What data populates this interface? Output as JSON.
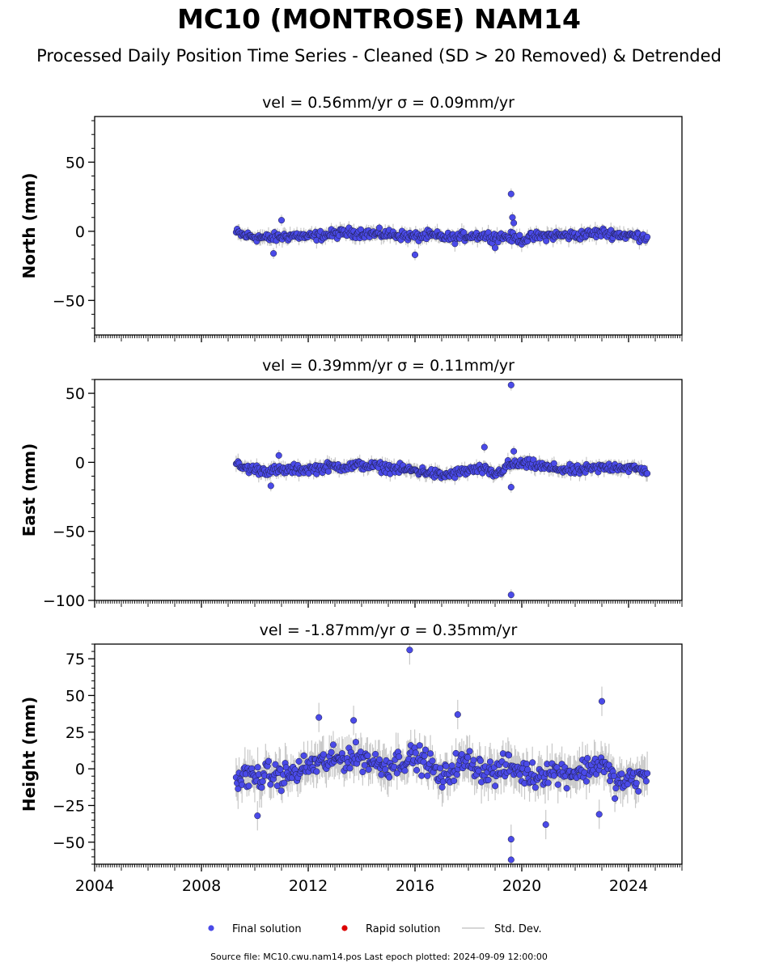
{
  "header": {
    "title": "MC10 (MONTROSE) NAM14",
    "subtitle": "Processed Daily Position Time Series - Cleaned (SD > 20 Removed) & Detrended"
  },
  "footer": {
    "source": "Source file: MC10.cwu.nam14.pos  Last epoch plotted: 2024-09-09 12:00:00"
  },
  "colors": {
    "final": "#4a4ae8",
    "rapid": "#dd0000",
    "stddev": "#c8c8c8",
    "axis": "#000000"
  },
  "chart_data": {
    "type": "scatter",
    "x_axis": {
      "xlim": [
        2004.0,
        2026.0
      ],
      "ticks": [
        2004,
        2008,
        2012,
        2016,
        2020,
        2024
      ],
      "tick_labels": [
        "2004",
        "2008",
        "2012",
        "2016",
        "2020",
        "2024"
      ]
    },
    "legend": {
      "placement": "bottom-center",
      "entries": [
        {
          "label": "Final solution",
          "marker": "circle",
          "color": "#4a4ae8"
        },
        {
          "label": "Rapid solution",
          "marker": "circle",
          "color": "#dd0000"
        },
        {
          "label": "Std. Dev.",
          "marker": "line",
          "color": "#c8c8c8"
        }
      ]
    },
    "panels": [
      {
        "name": "north",
        "title": "vel = 0.56mm/yr   σ = 0.09mm/yr",
        "ylabel": "North (mm)",
        "ylim": [
          -75,
          83
        ],
        "yticks": [
          -50,
          0,
          50
        ],
        "ytick_labels": [
          "−50",
          "0",
          "50"
        ],
        "time_range": [
          2009.3,
          2024.7
        ],
        "series": [
          {
            "name": "Final solution",
            "x": [
              2009.3,
              2009.6,
              2010.0,
              2010.5,
              2011.0,
              2011.5,
              2012.0,
              2012.5,
              2013.0,
              2013.5,
              2014.0,
              2014.5,
              2015.0,
              2015.5,
              2016.0,
              2016.5,
              2017.0,
              2017.5,
              2018.0,
              2018.5,
              2019.0,
              2019.5,
              2020.0,
              2020.5,
              2021.0,
              2021.5,
              2022.0,
              2022.5,
              2023.0,
              2023.5,
              2024.0,
              2024.7
            ],
            "y": [
              -1,
              -3,
              -4,
              -5,
              -4,
              -3,
              -4,
              -3,
              -2,
              -1,
              -1,
              -2,
              -2,
              -3,
              -4,
              -3,
              -4,
              -5,
              -3,
              -3,
              -4,
              -4,
              -6,
              -4,
              -3,
              -3,
              -3,
              -2,
              -1,
              -2,
              -3,
              -4
            ]
          }
        ],
        "outliers": [
          {
            "x": 2010.7,
            "y": -16
          },
          {
            "x": 2011.0,
            "y": 8
          },
          {
            "x": 2016.0,
            "y": -17
          },
          {
            "x": 2019.6,
            "y": 27
          },
          {
            "x": 2019.65,
            "y": 10
          },
          {
            "x": 2019.7,
            "y": 6
          },
          {
            "x": 2019.0,
            "y": -12
          }
        ],
        "spread": 4
      },
      {
        "name": "east",
        "title": "vel = 0.39mm/yr   σ = 0.11mm/yr",
        "ylabel": "East (mm)",
        "ylim": [
          -100,
          60
        ],
        "yticks": [
          -100,
          -50,
          0,
          50
        ],
        "ytick_labels": [
          "−100",
          "−50",
          "0",
          "50"
        ],
        "time_range": [
          2009.3,
          2024.7
        ],
        "series": [
          {
            "name": "Final solution",
            "x": [
              2009.3,
              2009.6,
              2010.0,
              2010.5,
              2011.0,
              2011.5,
              2012.0,
              2012.5,
              2013.0,
              2013.5,
              2014.0,
              2014.5,
              2015.0,
              2015.5,
              2016.0,
              2016.5,
              2017.0,
              2017.5,
              2018.0,
              2018.5,
              2019.0,
              2019.5,
              2020.0,
              2020.5,
              2021.0,
              2021.5,
              2022.0,
              2022.5,
              2023.0,
              2023.5,
              2024.0,
              2024.7
            ],
            "y": [
              -2,
              -4,
              -5,
              -6,
              -6,
              -5,
              -5,
              -4,
              -3,
              -3,
              -2,
              -3,
              -4,
              -5,
              -6,
              -7,
              -10,
              -8,
              -6,
              -5,
              -9,
              -2,
              -1,
              -2,
              -4,
              -5,
              -6,
              -5,
              -4,
              -3,
              -4,
              -6
            ]
          }
        ],
        "outliers": [
          {
            "x": 2010.9,
            "y": 5
          },
          {
            "x": 2010.6,
            "y": -17
          },
          {
            "x": 2018.6,
            "y": 11
          },
          {
            "x": 2019.6,
            "y": 56
          },
          {
            "x": 2019.6,
            "y": -96
          },
          {
            "x": 2019.6,
            "y": -18
          },
          {
            "x": 2019.7,
            "y": 8
          }
        ],
        "spread": 4
      },
      {
        "name": "height",
        "title": "vel = -1.87mm/yr   σ = 0.35mm/yr",
        "ylabel": "Height (mm)",
        "ylim": [
          -65,
          85
        ],
        "yticks": [
          -50,
          -25,
          0,
          25,
          50,
          75
        ],
        "ytick_labels": [
          "−50",
          "−25",
          "0",
          "25",
          "50",
          "75"
        ],
        "time_range": [
          2009.3,
          2024.7
        ],
        "series": [
          {
            "name": "Final solution",
            "x": [
              2009.3,
              2009.6,
              2010.0,
              2010.5,
              2011.0,
              2011.5,
              2012.0,
              2012.5,
              2013.0,
              2013.5,
              2014.0,
              2014.5,
              2015.0,
              2015.5,
              2016.0,
              2016.5,
              2017.0,
              2017.5,
              2018.0,
              2018.5,
              2019.0,
              2019.5,
              2020.0,
              2020.5,
              2021.0,
              2021.5,
              2022.0,
              2022.5,
              2023.0,
              2023.5,
              2024.0,
              2024.7
            ],
            "y": [
              -8,
              -5,
              -6,
              -4,
              -5,
              -3,
              2,
              4,
              6,
              8,
              8,
              4,
              2,
              6,
              8,
              4,
              -8,
              2,
              5,
              0,
              -3,
              2,
              -2,
              -5,
              -1,
              -3,
              -2,
              0,
              5,
              -10,
              -8,
              -5
            ]
          }
        ],
        "outliers": [
          {
            "x": 2015.8,
            "y": 81
          },
          {
            "x": 2012.4,
            "y": 35
          },
          {
            "x": 2013.7,
            "y": 33
          },
          {
            "x": 2017.6,
            "y": 37
          },
          {
            "x": 2023.0,
            "y": 46
          },
          {
            "x": 2019.6,
            "y": -48
          },
          {
            "x": 2019.6,
            "y": -62
          },
          {
            "x": 2010.1,
            "y": -32
          },
          {
            "x": 2020.9,
            "y": -38
          },
          {
            "x": 2022.9,
            "y": -31
          }
        ],
        "spread": 10
      }
    ]
  }
}
